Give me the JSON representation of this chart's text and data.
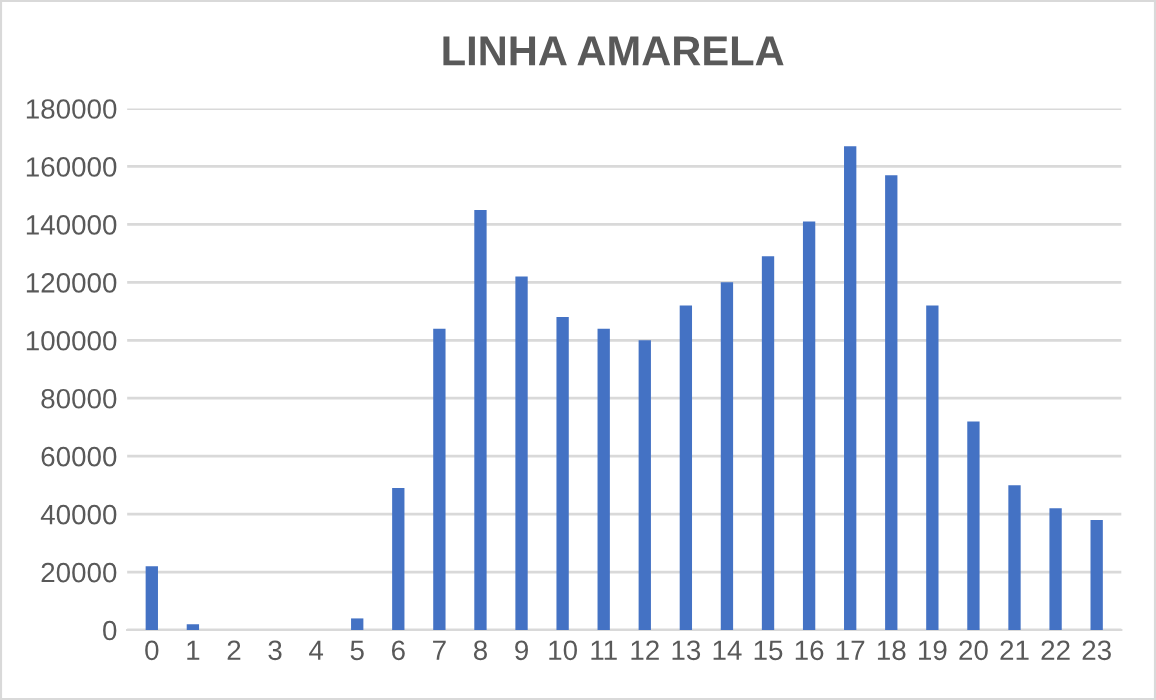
{
  "chart_data": {
    "type": "bar",
    "title": "LINHA AMARELA",
    "categories": [
      "0",
      "1",
      "2",
      "3",
      "4",
      "5",
      "6",
      "7",
      "8",
      "9",
      "10",
      "11",
      "12",
      "13",
      "14",
      "15",
      "16",
      "17",
      "18",
      "19",
      "20",
      "21",
      "22",
      "23"
    ],
    "values": [
      22000,
      2000,
      0,
      0,
      0,
      4000,
      49000,
      104000,
      145000,
      122000,
      108000,
      104000,
      100000,
      112000,
      120000,
      129000,
      141000,
      167000,
      157000,
      112000,
      72000,
      50000,
      42000,
      38000
    ],
    "color": "#4472c4",
    "ylim": [
      0,
      180000
    ],
    "yticks": [
      0,
      20000,
      40000,
      60000,
      80000,
      100000,
      120000,
      140000,
      160000,
      180000
    ],
    "grid": "y",
    "legend": false
  }
}
